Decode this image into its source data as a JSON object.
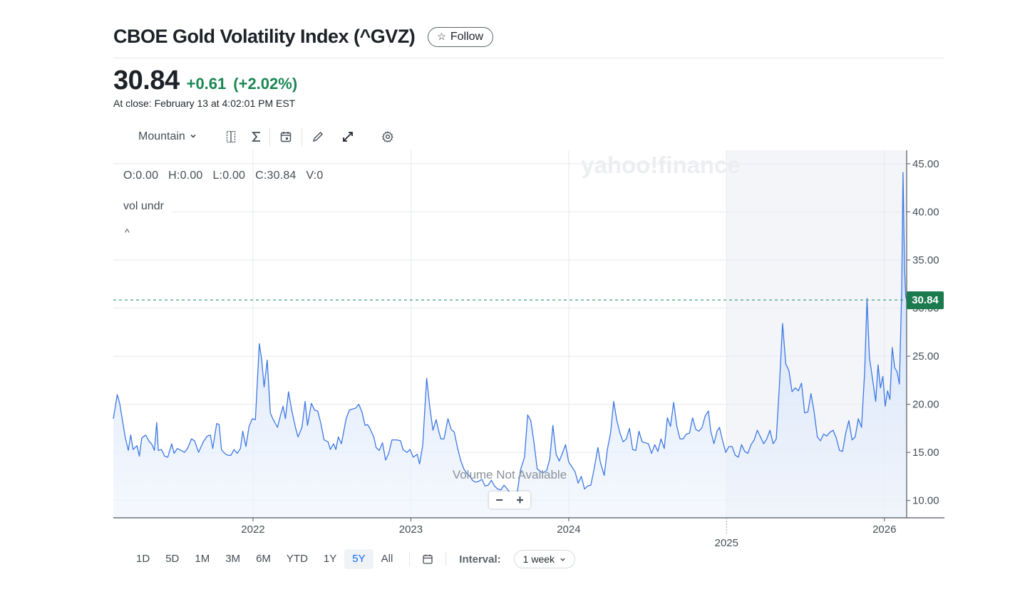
{
  "header": {
    "title": "CBOE Gold Volatility Index (^GVZ)",
    "follow_label": "Follow"
  },
  "quote": {
    "price": "30.84",
    "change": "+0.61",
    "change_pct": "(+2.02%)",
    "close_time": "At close: February 13 at 4:02:01 PM EST"
  },
  "toolbar": {
    "chart_type": "Mountain",
    "icons": [
      "compare-icon",
      "indicators-icon",
      "events-icon",
      "draw-icon",
      "expand-icon",
      "settings-icon"
    ]
  },
  "ohlc": {
    "open": "O:0.00",
    "high": "H:0.00",
    "low": "L:0.00",
    "close": "C:30.84",
    "volume": "V:0"
  },
  "overlay": {
    "indicator_label": "vol undr",
    "collapse": "^",
    "volume_msg": "Volume Not Available",
    "watermark": "yahoo!finance",
    "zoom_out": "−",
    "zoom_in": "+"
  },
  "colors": {
    "line": "#3d78e4",
    "fill_top": "#c9dcfa",
    "price_badge": "#1b7a4e",
    "up": "#1a8754",
    "active_range": "#0f69ff"
  },
  "chart_data": {
    "type": "area",
    "title": "CBOE Gold Volatility Index (^GVZ)",
    "ylim": [
      8.2,
      46.4
    ],
    "y_ticks": [
      "45.00",
      "40.00",
      "35.00",
      "30.00",
      "25.00",
      "20.00",
      "15.00",
      "10.00"
    ],
    "y_tick_values": [
      45,
      40,
      35,
      30,
      25,
      20,
      15,
      10
    ],
    "x_ticks": [
      {
        "label": "2022",
        "t": 2022.0
      },
      {
        "label": "2023",
        "t": 2023.0
      },
      {
        "label": "2024",
        "t": 2024.0
      },
      {
        "label": "2025",
        "t": 2025.0
      },
      {
        "label": "2026",
        "t": 2026.0
      }
    ],
    "xlim": [
      2021.115,
      2026.141
    ],
    "last_value": 30.84,
    "last_label": "30.84",
    "highlight_start": 2025.0,
    "series": [
      {
        "t": 2021.115,
        "v": 18.5
      },
      {
        "t": 2021.14,
        "v": 21.0
      },
      {
        "t": 2021.155,
        "v": 20.1
      },
      {
        "t": 2021.19,
        "v": 16.6
      },
      {
        "t": 2021.21,
        "v": 15.2
      },
      {
        "t": 2021.225,
        "v": 16.8
      },
      {
        "t": 2021.24,
        "v": 15.3
      },
      {
        "t": 2021.265,
        "v": 15.7
      },
      {
        "t": 2021.28,
        "v": 14.6
      },
      {
        "t": 2021.295,
        "v": 16.5
      },
      {
        "t": 2021.32,
        "v": 16.8
      },
      {
        "t": 2021.34,
        "v": 16.2
      },
      {
        "t": 2021.36,
        "v": 15.8
      },
      {
        "t": 2021.375,
        "v": 15.2
      },
      {
        "t": 2021.39,
        "v": 18.1
      },
      {
        "t": 2021.4,
        "v": 15.2
      },
      {
        "t": 2021.42,
        "v": 15.3
      },
      {
        "t": 2021.44,
        "v": 14.6
      },
      {
        "t": 2021.46,
        "v": 14.5
      },
      {
        "t": 2021.485,
        "v": 15.9
      },
      {
        "t": 2021.5,
        "v": 14.9
      },
      {
        "t": 2021.52,
        "v": 15.4
      },
      {
        "t": 2021.545,
        "v": 15.2
      },
      {
        "t": 2021.565,
        "v": 15.0
      },
      {
        "t": 2021.585,
        "v": 15.4
      },
      {
        "t": 2021.61,
        "v": 16.4
      },
      {
        "t": 2021.63,
        "v": 16.2
      },
      {
        "t": 2021.655,
        "v": 15.0
      },
      {
        "t": 2021.685,
        "v": 16.1
      },
      {
        "t": 2021.71,
        "v": 16.7
      },
      {
        "t": 2021.73,
        "v": 16.8
      },
      {
        "t": 2021.745,
        "v": 15.4
      },
      {
        "t": 2021.77,
        "v": 18.0
      },
      {
        "t": 2021.785,
        "v": 17.9
      },
      {
        "t": 2021.8,
        "v": 15.3
      },
      {
        "t": 2021.82,
        "v": 14.9
      },
      {
        "t": 2021.84,
        "v": 14.7
      },
      {
        "t": 2021.86,
        "v": 14.7
      },
      {
        "t": 2021.88,
        "v": 15.3
      },
      {
        "t": 2021.9,
        "v": 14.9
      },
      {
        "t": 2021.92,
        "v": 15.4
      },
      {
        "t": 2021.935,
        "v": 17.2
      },
      {
        "t": 2021.955,
        "v": 15.6
      },
      {
        "t": 2021.975,
        "v": 17.7
      },
      {
        "t": 2021.995,
        "v": 18.5
      },
      {
        "t": 2022.015,
        "v": 18.4
      },
      {
        "t": 2022.04,
        "v": 26.3
      },
      {
        "t": 2022.055,
        "v": 24.6
      },
      {
        "t": 2022.07,
        "v": 21.8
      },
      {
        "t": 2022.09,
        "v": 24.6
      },
      {
        "t": 2022.11,
        "v": 19.1
      },
      {
        "t": 2022.125,
        "v": 18.5
      },
      {
        "t": 2022.155,
        "v": 17.6
      },
      {
        "t": 2022.175,
        "v": 18.9
      },
      {
        "t": 2022.19,
        "v": 19.8
      },
      {
        "t": 2022.205,
        "v": 18.5
      },
      {
        "t": 2022.225,
        "v": 21.3
      },
      {
        "t": 2022.245,
        "v": 19.4
      },
      {
        "t": 2022.27,
        "v": 17.5
      },
      {
        "t": 2022.285,
        "v": 16.6
      },
      {
        "t": 2022.31,
        "v": 17.6
      },
      {
        "t": 2022.33,
        "v": 20.3
      },
      {
        "t": 2022.345,
        "v": 17.8
      },
      {
        "t": 2022.37,
        "v": 20.1
      },
      {
        "t": 2022.39,
        "v": 19.4
      },
      {
        "t": 2022.41,
        "v": 19.3
      },
      {
        "t": 2022.43,
        "v": 18.0
      },
      {
        "t": 2022.45,
        "v": 16.3
      },
      {
        "t": 2022.475,
        "v": 16.1
      },
      {
        "t": 2022.49,
        "v": 15.3
      },
      {
        "t": 2022.51,
        "v": 15.9
      },
      {
        "t": 2022.525,
        "v": 15.3
      },
      {
        "t": 2022.54,
        "v": 16.6
      },
      {
        "t": 2022.56,
        "v": 15.9
      },
      {
        "t": 2022.59,
        "v": 18.5
      },
      {
        "t": 2022.61,
        "v": 19.4
      },
      {
        "t": 2022.63,
        "v": 19.5
      },
      {
        "t": 2022.65,
        "v": 19.6
      },
      {
        "t": 2022.67,
        "v": 20.0
      },
      {
        "t": 2022.69,
        "v": 19.2
      },
      {
        "t": 2022.71,
        "v": 17.8
      },
      {
        "t": 2022.725,
        "v": 17.9
      },
      {
        "t": 2022.74,
        "v": 17.5
      },
      {
        "t": 2022.765,
        "v": 16.6
      },
      {
        "t": 2022.78,
        "v": 15.5
      },
      {
        "t": 2022.8,
        "v": 15.2
      },
      {
        "t": 2022.82,
        "v": 16.0
      },
      {
        "t": 2022.84,
        "v": 14.2
      },
      {
        "t": 2022.86,
        "v": 14.9
      },
      {
        "t": 2022.88,
        "v": 16.3
      },
      {
        "t": 2022.91,
        "v": 16.3
      },
      {
        "t": 2022.935,
        "v": 16.2
      },
      {
        "t": 2022.95,
        "v": 15.3
      },
      {
        "t": 2022.975,
        "v": 15.0
      },
      {
        "t": 2022.995,
        "v": 15.3
      },
      {
        "t": 2023.015,
        "v": 14.5
      },
      {
        "t": 2023.04,
        "v": 14.8
      },
      {
        "t": 2023.055,
        "v": 13.8
      },
      {
        "t": 2023.075,
        "v": 15.7
      },
      {
        "t": 2023.1,
        "v": 22.7
      },
      {
        "t": 2023.12,
        "v": 19.7
      },
      {
        "t": 2023.14,
        "v": 17.3
      },
      {
        "t": 2023.16,
        "v": 18.4
      },
      {
        "t": 2023.175,
        "v": 17.3
      },
      {
        "t": 2023.19,
        "v": 16.4
      },
      {
        "t": 2023.21,
        "v": 16.4
      },
      {
        "t": 2023.235,
        "v": 18.5
      },
      {
        "t": 2023.255,
        "v": 17.4
      },
      {
        "t": 2023.275,
        "v": 17.1
      },
      {
        "t": 2023.295,
        "v": 15.5
      },
      {
        "t": 2023.315,
        "v": 14.2
      },
      {
        "t": 2023.335,
        "v": 13.3
      },
      {
        "t": 2023.355,
        "v": 12.8
      },
      {
        "t": 2023.375,
        "v": 12.5
      },
      {
        "t": 2023.39,
        "v": 12.1
      },
      {
        "t": 2023.41,
        "v": 11.9
      },
      {
        "t": 2023.43,
        "v": 12.0
      },
      {
        "t": 2023.45,
        "v": 12.2
      },
      {
        "t": 2023.47,
        "v": 11.5
      },
      {
        "t": 2023.49,
        "v": 11.6
      },
      {
        "t": 2023.51,
        "v": 12.1
      },
      {
        "t": 2023.53,
        "v": 11.5
      },
      {
        "t": 2023.55,
        "v": 11.2
      },
      {
        "t": 2023.57,
        "v": 11.1
      },
      {
        "t": 2023.59,
        "v": 11.6
      },
      {
        "t": 2023.61,
        "v": 11.2
      },
      {
        "t": 2023.63,
        "v": 10.8
      },
      {
        "t": 2023.65,
        "v": 10.2
      },
      {
        "t": 2023.67,
        "v": 10.4
      },
      {
        "t": 2023.695,
        "v": 13.2
      },
      {
        "t": 2023.72,
        "v": 14.5
      },
      {
        "t": 2023.74,
        "v": 18.9
      },
      {
        "t": 2023.76,
        "v": 18.3
      },
      {
        "t": 2023.78,
        "v": 16.0
      },
      {
        "t": 2023.8,
        "v": 13.3
      },
      {
        "t": 2023.82,
        "v": 13.0
      },
      {
        "t": 2023.84,
        "v": 12.9
      },
      {
        "t": 2023.86,
        "v": 13.1
      },
      {
        "t": 2023.88,
        "v": 14.3
      },
      {
        "t": 2023.9,
        "v": 17.8
      },
      {
        "t": 2023.92,
        "v": 14.8
      },
      {
        "t": 2023.94,
        "v": 14.1
      },
      {
        "t": 2023.96,
        "v": 14.9
      },
      {
        "t": 2023.98,
        "v": 15.8
      },
      {
        "t": 2024.0,
        "v": 14.0
      },
      {
        "t": 2024.02,
        "v": 13.5
      },
      {
        "t": 2024.04,
        "v": 13.0
      },
      {
        "t": 2024.06,
        "v": 11.8
      },
      {
        "t": 2024.08,
        "v": 12.5
      },
      {
        "t": 2024.1,
        "v": 11.2
      },
      {
        "t": 2024.12,
        "v": 11.5
      },
      {
        "t": 2024.14,
        "v": 11.6
      },
      {
        "t": 2024.16,
        "v": 13.2
      },
      {
        "t": 2024.185,
        "v": 15.5
      },
      {
        "t": 2024.2,
        "v": 14.0
      },
      {
        "t": 2024.225,
        "v": 12.6
      },
      {
        "t": 2024.245,
        "v": 15.3
      },
      {
        "t": 2024.265,
        "v": 17.0
      },
      {
        "t": 2024.285,
        "v": 20.3
      },
      {
        "t": 2024.305,
        "v": 18.3
      },
      {
        "t": 2024.325,
        "v": 17.0
      },
      {
        "t": 2024.345,
        "v": 16.1
      },
      {
        "t": 2024.365,
        "v": 16.4
      },
      {
        "t": 2024.385,
        "v": 17.5
      },
      {
        "t": 2024.405,
        "v": 15.3
      },
      {
        "t": 2024.425,
        "v": 15.2
      },
      {
        "t": 2024.445,
        "v": 17.2
      },
      {
        "t": 2024.465,
        "v": 16.1
      },
      {
        "t": 2024.485,
        "v": 16.0
      },
      {
        "t": 2024.505,
        "v": 15.9
      },
      {
        "t": 2024.525,
        "v": 14.9
      },
      {
        "t": 2024.545,
        "v": 15.8
      },
      {
        "t": 2024.565,
        "v": 15.1
      },
      {
        "t": 2024.585,
        "v": 16.4
      },
      {
        "t": 2024.605,
        "v": 15.4
      },
      {
        "t": 2024.625,
        "v": 18.6
      },
      {
        "t": 2024.645,
        "v": 17.7
      },
      {
        "t": 2024.665,
        "v": 20.2
      },
      {
        "t": 2024.685,
        "v": 17.7
      },
      {
        "t": 2024.705,
        "v": 16.4
      },
      {
        "t": 2024.725,
        "v": 16.4
      },
      {
        "t": 2024.745,
        "v": 16.9
      },
      {
        "t": 2024.765,
        "v": 17.0
      },
      {
        "t": 2024.785,
        "v": 18.6
      },
      {
        "t": 2024.805,
        "v": 17.4
      },
      {
        "t": 2024.825,
        "v": 17.2
      },
      {
        "t": 2024.845,
        "v": 17.6
      },
      {
        "t": 2024.865,
        "v": 18.8
      },
      {
        "t": 2024.885,
        "v": 19.3
      },
      {
        "t": 2024.9,
        "v": 17.2
      },
      {
        "t": 2024.92,
        "v": 15.9
      },
      {
        "t": 2024.94,
        "v": 17.2
      },
      {
        "t": 2024.955,
        "v": 17.6
      },
      {
        "t": 2024.975,
        "v": 16.2
      },
      {
        "t": 2024.995,
        "v": 15.0
      },
      {
        "t": 2025.015,
        "v": 15.6
      },
      {
        "t": 2025.035,
        "v": 15.6
      },
      {
        "t": 2025.055,
        "v": 14.7
      },
      {
        "t": 2025.075,
        "v": 14.5
      },
      {
        "t": 2025.095,
        "v": 15.8
      },
      {
        "t": 2025.115,
        "v": 15.1
      },
      {
        "t": 2025.135,
        "v": 14.9
      },
      {
        "t": 2025.155,
        "v": 15.8
      },
      {
        "t": 2025.175,
        "v": 16.3
      },
      {
        "t": 2025.195,
        "v": 17.3
      },
      {
        "t": 2025.215,
        "v": 16.6
      },
      {
        "t": 2025.235,
        "v": 15.9
      },
      {
        "t": 2025.255,
        "v": 16.4
      },
      {
        "t": 2025.275,
        "v": 17.3
      },
      {
        "t": 2025.295,
        "v": 15.9
      },
      {
        "t": 2025.315,
        "v": 16.4
      },
      {
        "t": 2025.335,
        "v": 22.0
      },
      {
        "t": 2025.355,
        "v": 28.4
      },
      {
        "t": 2025.375,
        "v": 24.2
      },
      {
        "t": 2025.395,
        "v": 23.5
      },
      {
        "t": 2025.415,
        "v": 21.3
      },
      {
        "t": 2025.435,
        "v": 21.7
      },
      {
        "t": 2025.455,
        "v": 21.4
      },
      {
        "t": 2025.475,
        "v": 22.2
      },
      {
        "t": 2025.495,
        "v": 19.1
      },
      {
        "t": 2025.515,
        "v": 19.2
      },
      {
        "t": 2025.535,
        "v": 21.1
      },
      {
        "t": 2025.555,
        "v": 19.2
      },
      {
        "t": 2025.575,
        "v": 16.6
      },
      {
        "t": 2025.595,
        "v": 16.2
      },
      {
        "t": 2025.615,
        "v": 16.9
      },
      {
        "t": 2025.635,
        "v": 16.7
      },
      {
        "t": 2025.655,
        "v": 17.1
      },
      {
        "t": 2025.675,
        "v": 17.3
      },
      {
        "t": 2025.695,
        "v": 16.5
      },
      {
        "t": 2025.715,
        "v": 15.2
      },
      {
        "t": 2025.735,
        "v": 15.1
      },
      {
        "t": 2025.755,
        "v": 17.0
      },
      {
        "t": 2025.775,
        "v": 18.3
      },
      {
        "t": 2025.795,
        "v": 16.3
      },
      {
        "t": 2025.815,
        "v": 16.6
      },
      {
        "t": 2025.835,
        "v": 18.5
      },
      {
        "t": 2025.855,
        "v": 17.6
      },
      {
        "t": 2025.875,
        "v": 23.4
      },
      {
        "t": 2025.89,
        "v": 31.0
      },
      {
        "t": 2025.905,
        "v": 24.9
      },
      {
        "t": 2025.925,
        "v": 22.6
      },
      {
        "t": 2025.945,
        "v": 20.3
      },
      {
        "t": 2025.96,
        "v": 24.1
      },
      {
        "t": 2025.975,
        "v": 21.7
      },
      {
        "t": 2025.99,
        "v": 22.9
      },
      {
        "t": 2026.005,
        "v": 19.8
      },
      {
        "t": 2026.02,
        "v": 21.4
      },
      {
        "t": 2026.035,
        "v": 20.5
      },
      {
        "t": 2026.05,
        "v": 25.9
      },
      {
        "t": 2026.065,
        "v": 23.8
      },
      {
        "t": 2026.08,
        "v": 23.4
      },
      {
        "t": 2026.095,
        "v": 22.1
      },
      {
        "t": 2026.11,
        "v": 32.0
      },
      {
        "t": 2026.118,
        "v": 44.1
      },
      {
        "t": 2026.128,
        "v": 34.0
      },
      {
        "t": 2026.135,
        "v": 31.2
      },
      {
        "t": 2026.141,
        "v": 30.84
      }
    ]
  },
  "range_bar": {
    "ranges": [
      "1D",
      "5D",
      "1M",
      "3M",
      "6M",
      "YTD",
      "1Y",
      "5Y",
      "All"
    ],
    "active_range": "5Y",
    "interval_label": "Interval:",
    "interval_value": "1 week"
  }
}
